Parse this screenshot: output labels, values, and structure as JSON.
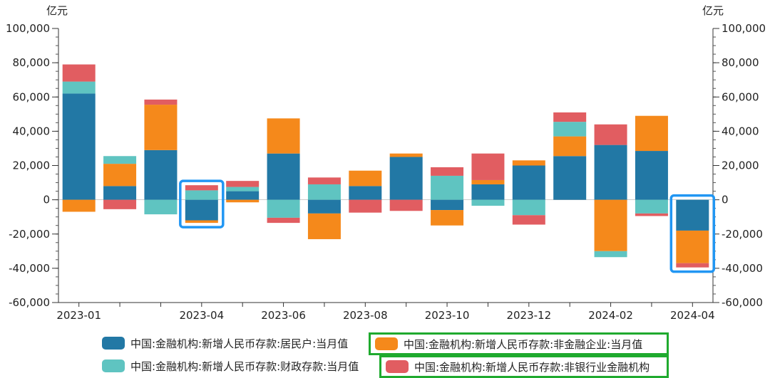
{
  "chart_data": {
    "type": "bar",
    "stacked": true,
    "unit_left": "亿元",
    "unit_right": "亿元",
    "ylim": [
      -60000,
      100000
    ],
    "y_ticks": [
      "100,000",
      "80,000",
      "60,000",
      "40,000",
      "20,000",
      "0",
      "-20,000",
      "-40,000",
      "-60,000"
    ],
    "y_tick_values": [
      100000,
      80000,
      60000,
      40000,
      20000,
      0,
      -20000,
      -40000,
      -60000
    ],
    "x_tick_labels": [
      {
        "index": 0,
        "label": "2023-01"
      },
      {
        "index": 3,
        "label": "2023-04"
      },
      {
        "index": 5,
        "label": "2023-06"
      },
      {
        "index": 7,
        "label": "2023-08"
      },
      {
        "index": 9,
        "label": "2023-10"
      },
      {
        "index": 11,
        "label": "2023-12"
      },
      {
        "index": 13,
        "label": "2024-02"
      },
      {
        "index": 15,
        "label": "2024-04"
      }
    ],
    "categories": [
      "2023-01",
      "2023-02",
      "2023-03",
      "2023-04",
      "2023-05",
      "2023-06",
      "2023-07",
      "2023-08",
      "2023-09",
      "2023-10",
      "2023-11",
      "2023-12",
      "2024-01",
      "2024-02",
      "2024-03",
      "2024-04"
    ],
    "series": [
      {
        "name": "中国:金融机构:新增人民币存款:居民户:当月值",
        "color": "#2278a5",
        "values": [
          62000,
          8000,
          29000,
          -12000,
          5000,
          27000,
          -8000,
          8000,
          25000,
          -6000,
          9000,
          20000,
          25500,
          32000,
          28500,
          -18000
        ]
      },
      {
        "name": "中国:金融机构:新增人民币存款:非金融企业:当月值",
        "color": "#f5891b",
        "values": [
          -7000,
          13000,
          26500,
          -1500,
          -1500,
          20500,
          -15000,
          9000,
          2000,
          -9000,
          2500,
          3000,
          11500,
          -30000,
          20500,
          -19000
        ]
      },
      {
        "name": "中国:金融机构:新增人民币存款:财政存款:当月值",
        "color": "#5fc4c1",
        "values": [
          7000,
          4500,
          -8500,
          5500,
          2500,
          -10500,
          9000,
          0,
          0,
          14000,
          -3500,
          -9000,
          8500,
          -3500,
          -8000,
          0
        ]
      },
      {
        "name": "中国:金融机构:新增人民币存款:非银行业金融机构",
        "color": "#e15d61",
        "values": [
          10000,
          -5500,
          3000,
          3000,
          3500,
          -3000,
          4000,
          -7500,
          -6500,
          5000,
          15500,
          -5500,
          5500,
          12000,
          -1500,
          -2500
        ]
      }
    ],
    "highlight_boxes": [
      3,
      15
    ],
    "highlight_color": "#2196f3",
    "legend_highlight_color": "#1faa2e"
  }
}
